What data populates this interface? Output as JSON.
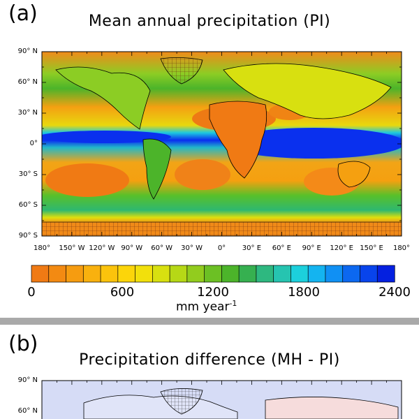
{
  "panel_a": {
    "letter": "(a)",
    "title": "Mean annual precipitation (PI)",
    "lat_labels": [
      "90° N",
      "60° N",
      "30° N",
      "0°",
      "30° S",
      "60° S",
      "90° S"
    ],
    "lon_labels": [
      "180°",
      "150° W",
      "120° W",
      "90° W",
      "60° W",
      "30° W",
      "0°",
      "30° E",
      "60° E",
      "90° E",
      "120° E",
      "150° E",
      "180°"
    ],
    "colorbar": {
      "labels": [
        "0",
        "600",
        "1200",
        "1800",
        "2400"
      ],
      "unit": "mm year",
      "unit_exp": "-1",
      "min": 0,
      "max": 2400,
      "colors": [
        "#f07a14",
        "#f38a12",
        "#f69c10",
        "#f9b10e",
        "#fbc30c",
        "#fcd50a",
        "#f2e00c",
        "#d8e010",
        "#b6d816",
        "#92cc1e",
        "#6cc024",
        "#4cb42a",
        "#36b050",
        "#2eb880",
        "#26c4b0",
        "#1cd0dc",
        "#14b4f0",
        "#1090f4",
        "#0c68f0",
        "#0844ec",
        "#0420e0"
      ],
      "palette_names": [
        "orange",
        "yellow",
        "green",
        "cyan",
        "blue"
      ]
    }
  },
  "panel_b": {
    "letter": "(b)",
    "title": "Precipitation difference (MH - PI)",
    "lat_labels": [
      "90° N",
      "60° N"
    ]
  },
  "colors": {
    "ocean_dry": "#f28a1c",
    "wet_band": "#0a2cf0",
    "diff_background": "#d6dcf6"
  }
}
